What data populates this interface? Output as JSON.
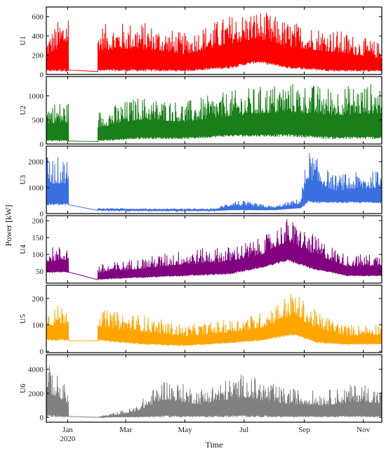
{
  "chart_data": {
    "type": "line",
    "ylabel": "Power [kW]",
    "xlabel": "Time",
    "x_ticks": [
      {
        "label": "Jan",
        "sub": "2020",
        "date": "2020-01-01"
      },
      {
        "label": "Mar",
        "sub": "",
        "date": "2020-03-01"
      },
      {
        "label": "May",
        "sub": "",
        "date": "2020-05-01"
      },
      {
        "label": "Jul",
        "sub": "",
        "date": "2020-07-01"
      },
      {
        "label": "Sep",
        "sub": "",
        "date": "2020-09-01"
      },
      {
        "label": "Nov",
        "sub": "",
        "date": "2020-11-01"
      }
    ],
    "x_range": [
      "2019-12-10",
      "2020-11-20"
    ],
    "gap": {
      "start": "2020-01-02",
      "end": "2020-02-01"
    },
    "panels": [
      {
        "label": "U1",
        "color": "#ff0000",
        "ylim": [
          0,
          700
        ],
        "yticks": [
          0,
          200,
          400,
          600
        ],
        "approx_profile": [
          {
            "date": "2019-12-10",
            "base": 30,
            "peak": 400
          },
          {
            "date": "2020-01-01",
            "base": 30,
            "peak": 690
          },
          {
            "date": "2020-02-01",
            "base": 30,
            "peak": 520
          },
          {
            "date": "2020-03-15",
            "base": 30,
            "peak": 560
          },
          {
            "date": "2020-05-01",
            "base": 30,
            "peak": 430
          },
          {
            "date": "2020-06-15",
            "base": 60,
            "peak": 620
          },
          {
            "date": "2020-07-15",
            "base": 120,
            "peak": 680
          },
          {
            "date": "2020-08-15",
            "base": 60,
            "peak": 560
          },
          {
            "date": "2020-10-01",
            "base": 30,
            "peak": 480
          },
          {
            "date": "2020-11-20",
            "base": 30,
            "peak": 330
          }
        ]
      },
      {
        "label": "U2",
        "color": "#1a7f1a",
        "ylim": [
          0,
          1400
        ],
        "yticks": [
          0,
          500,
          1000
        ],
        "approx_profile": [
          {
            "date": "2019-12-10",
            "base": 50,
            "peak": 900
          },
          {
            "date": "2020-01-01",
            "base": 50,
            "peak": 900
          },
          {
            "date": "2020-02-01",
            "base": 50,
            "peak": 700
          },
          {
            "date": "2020-03-15",
            "base": 100,
            "peak": 1000
          },
          {
            "date": "2020-05-01",
            "base": 100,
            "peak": 900
          },
          {
            "date": "2020-06-15",
            "base": 150,
            "peak": 1100
          },
          {
            "date": "2020-07-15",
            "base": 150,
            "peak": 1200
          },
          {
            "date": "2020-08-15",
            "base": 150,
            "peak": 1300
          },
          {
            "date": "2020-10-01",
            "base": 100,
            "peak": 1200
          },
          {
            "date": "2020-11-20",
            "base": 100,
            "peak": 1300
          }
        ]
      },
      {
        "label": "U3",
        "color": "#3a6fe0",
        "ylim": [
          0,
          2600
        ],
        "yticks": [
          0,
          1000,
          2000
        ],
        "approx_profile": [
          {
            "date": "2019-12-10",
            "base": 300,
            "peak": 2200
          },
          {
            "date": "2020-01-01",
            "base": 300,
            "peak": 2200
          },
          {
            "date": "2020-02-01",
            "base": 120,
            "peak": 220
          },
          {
            "date": "2020-04-01",
            "base": 100,
            "peak": 200
          },
          {
            "date": "2020-06-01",
            "base": 100,
            "peak": 200
          },
          {
            "date": "2020-06-20",
            "base": 120,
            "peak": 550
          },
          {
            "date": "2020-08-01",
            "base": 130,
            "peak": 300
          },
          {
            "date": "2020-08-28",
            "base": 200,
            "peak": 600
          },
          {
            "date": "2020-09-05",
            "base": 400,
            "peak": 2500
          },
          {
            "date": "2020-10-01",
            "base": 400,
            "peak": 1500
          },
          {
            "date": "2020-11-20",
            "base": 400,
            "peak": 1700
          }
        ]
      },
      {
        "label": "U4",
        "color": "#800080",
        "ylim": [
          15,
          215
        ],
        "yticks": [
          50,
          100,
          150,
          200
        ],
        "approx_profile": [
          {
            "date": "2019-12-10",
            "base": 45,
            "peak": 120
          },
          {
            "date": "2020-01-01",
            "base": 45,
            "peak": 130
          },
          {
            "date": "2020-02-01",
            "base": 25,
            "peak": 70
          },
          {
            "date": "2020-03-15",
            "base": 30,
            "peak": 90
          },
          {
            "date": "2020-05-01",
            "base": 35,
            "peak": 115
          },
          {
            "date": "2020-06-15",
            "base": 40,
            "peak": 125
          },
          {
            "date": "2020-07-20",
            "base": 60,
            "peak": 150
          },
          {
            "date": "2020-08-15",
            "base": 80,
            "peak": 210
          },
          {
            "date": "2020-09-10",
            "base": 55,
            "peak": 160
          },
          {
            "date": "2020-10-15",
            "base": 35,
            "peak": 100
          },
          {
            "date": "2020-11-20",
            "base": 35,
            "peak": 105
          }
        ]
      },
      {
        "label": "U5",
        "color": "#ffa500",
        "ylim": [
          -5,
          250
        ],
        "yticks": [
          0,
          100,
          200
        ],
        "approx_profile": [
          {
            "date": "2019-12-10",
            "base": 40,
            "peak": 160
          },
          {
            "date": "2020-01-01",
            "base": 40,
            "peak": 190
          },
          {
            "date": "2020-02-01",
            "base": 40,
            "peak": 160
          },
          {
            "date": "2020-03-15",
            "base": 25,
            "peak": 140
          },
          {
            "date": "2020-05-01",
            "base": 20,
            "peak": 100
          },
          {
            "date": "2020-06-15",
            "base": 30,
            "peak": 120
          },
          {
            "date": "2020-07-20",
            "base": 40,
            "peak": 150
          },
          {
            "date": "2020-08-20",
            "base": 60,
            "peak": 230
          },
          {
            "date": "2020-09-15",
            "base": 30,
            "peak": 150
          },
          {
            "date": "2020-10-15",
            "base": 25,
            "peak": 100
          },
          {
            "date": "2020-11-20",
            "base": 25,
            "peak": 110
          }
        ]
      },
      {
        "label": "U6",
        "color": "#808080",
        "ylim": [
          -400,
          5200
        ],
        "yticks": [
          0,
          2000,
          4000
        ],
        "approx_profile": [
          {
            "date": "2019-12-10",
            "base": 0,
            "peak": 4700
          },
          {
            "date": "2020-01-01",
            "base": 0,
            "peak": 2500
          },
          {
            "date": "2020-02-01",
            "base": 0,
            "peak": 0
          },
          {
            "date": "2020-03-10",
            "base": 0,
            "peak": 900
          },
          {
            "date": "2020-04-10",
            "base": 0,
            "peak": 3300
          },
          {
            "date": "2020-05-15",
            "base": 0,
            "peak": 2400
          },
          {
            "date": "2020-07-01",
            "base": 0,
            "peak": 3700
          },
          {
            "date": "2020-08-10",
            "base": 0,
            "peak": 2500
          },
          {
            "date": "2020-09-20",
            "base": 0,
            "peak": 2200
          },
          {
            "date": "2020-10-30",
            "base": 0,
            "peak": 2900
          },
          {
            "date": "2020-11-20",
            "base": 0,
            "peak": 2400
          }
        ]
      }
    ]
  },
  "colors": {
    "frame": "#000000",
    "background": "#ffffff"
  }
}
